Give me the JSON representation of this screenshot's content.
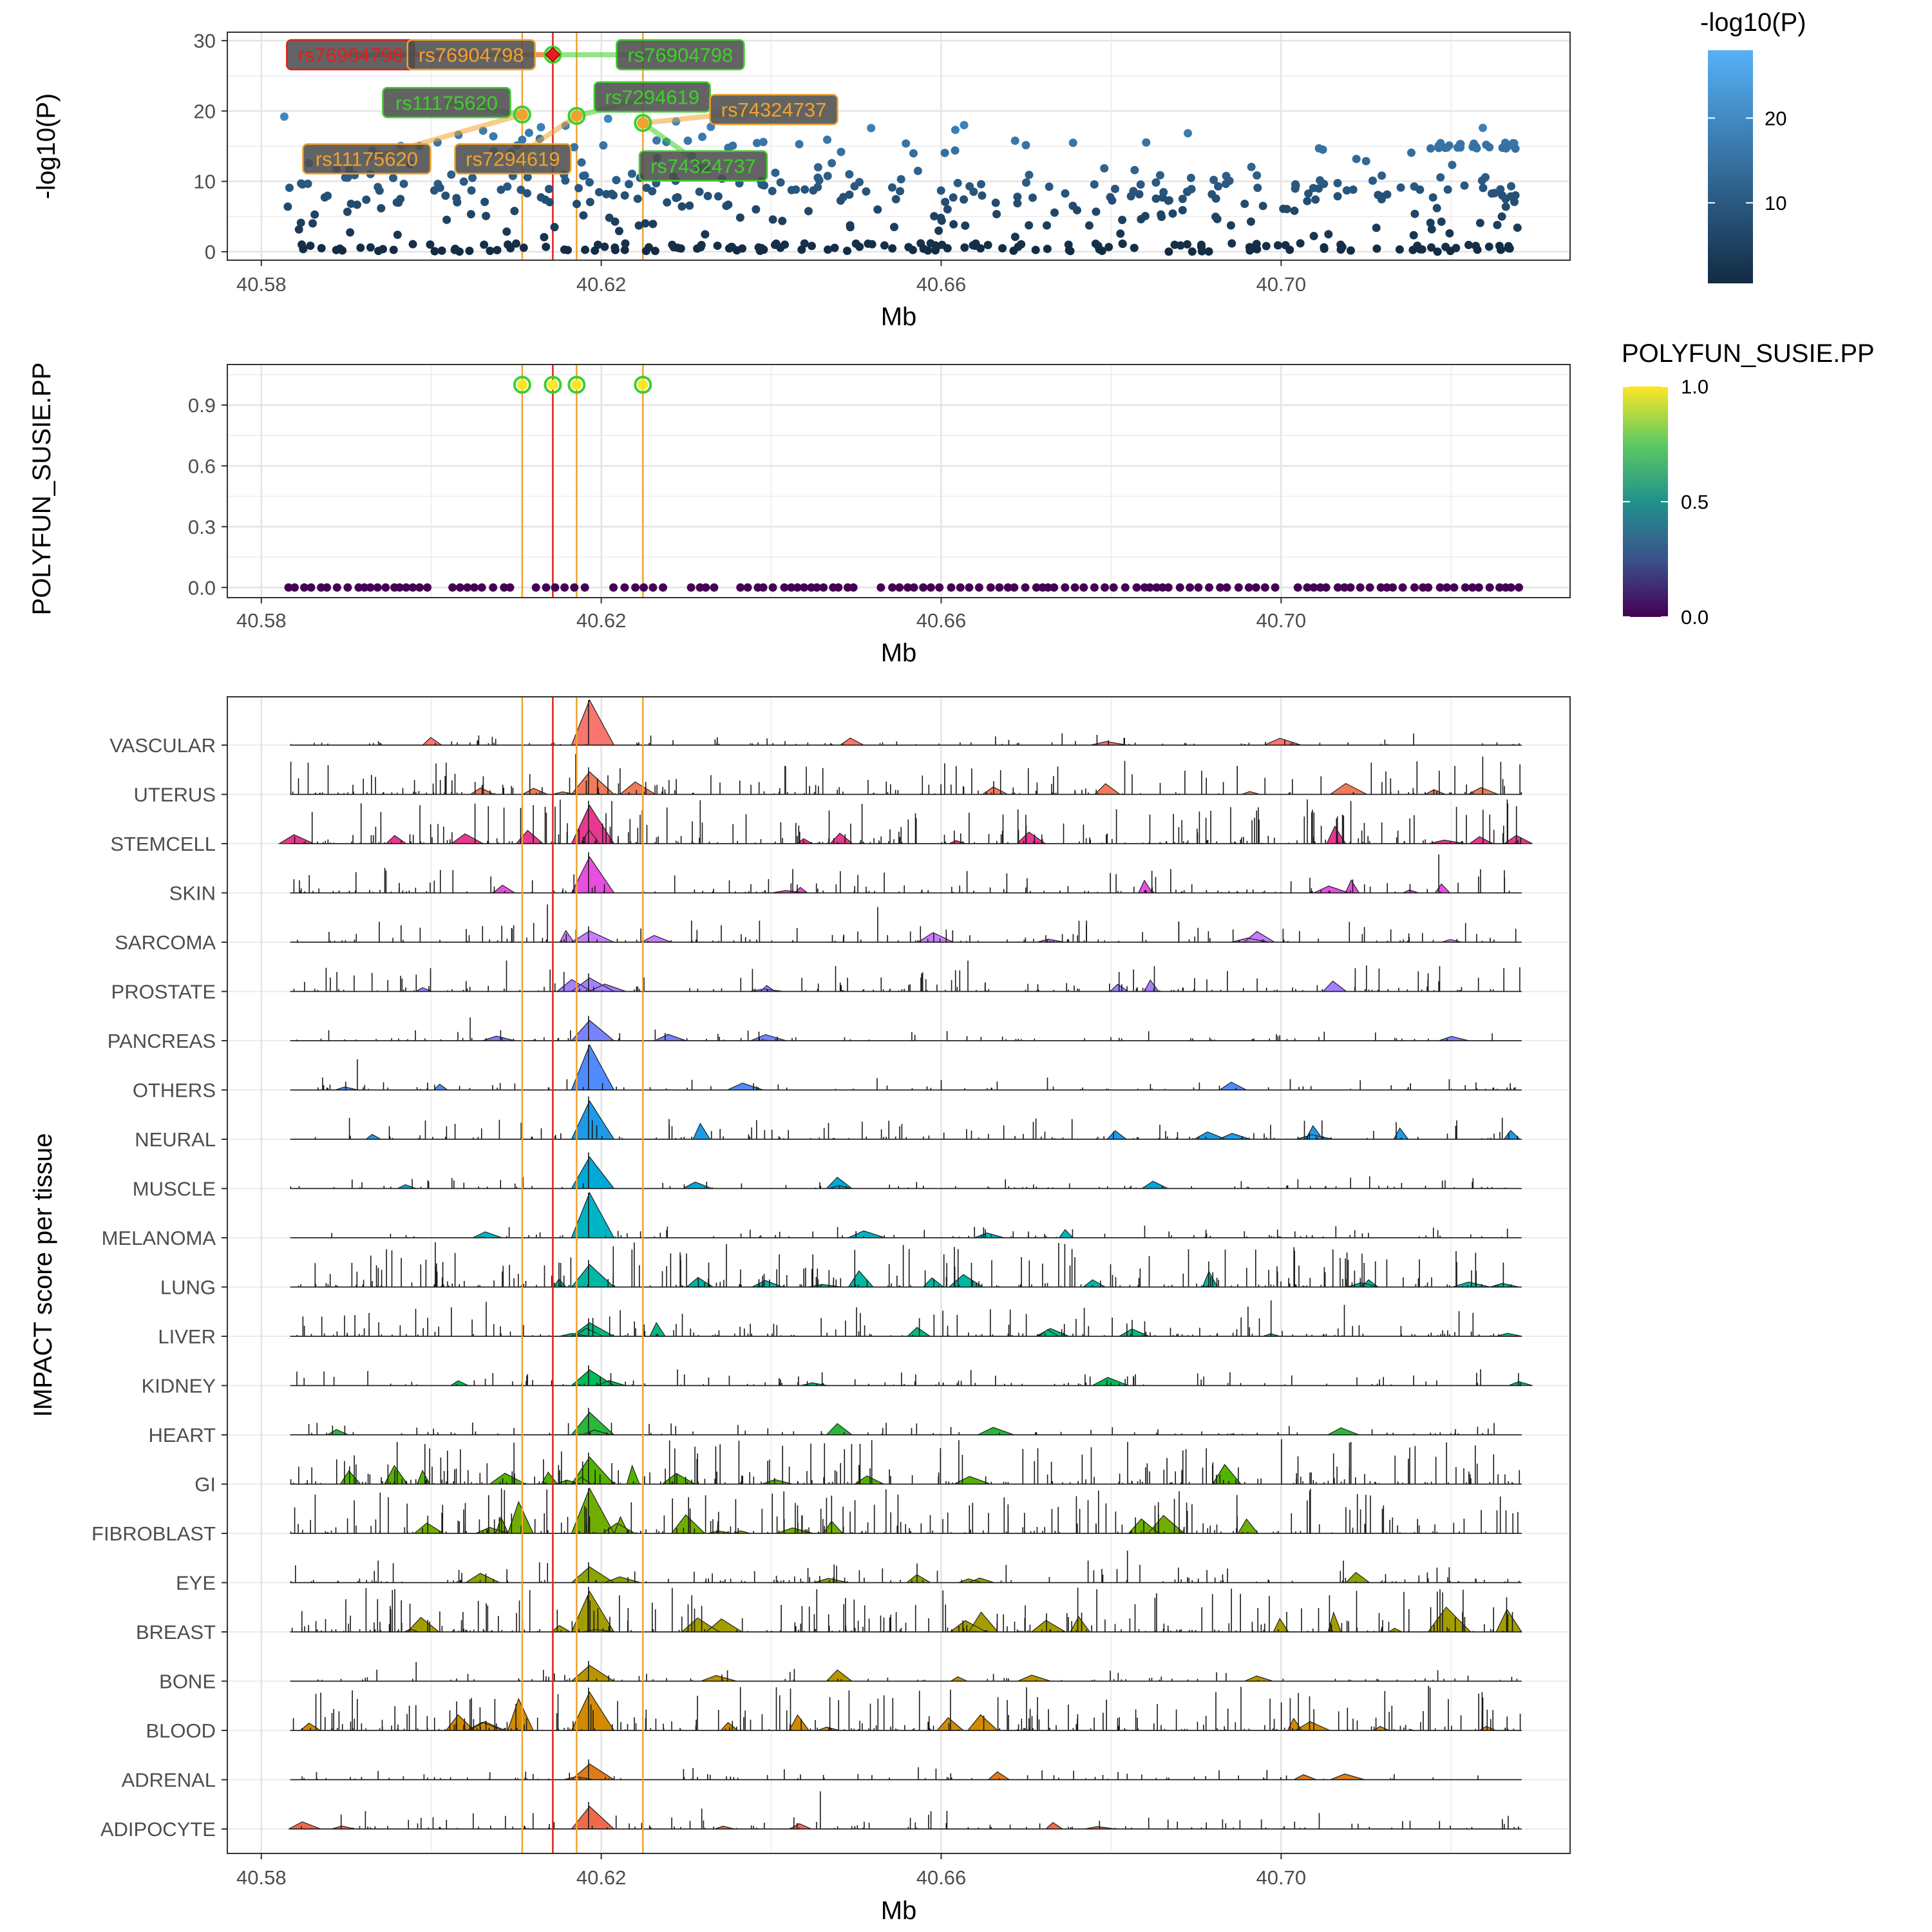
{
  "chart_data": [
    {
      "type": "scatter",
      "xlabel": "Mb",
      "ylabel": "-log10(P)",
      "xlim": [
        40.576,
        40.734
      ],
      "ylim": [
        -1.2,
        31.2
      ],
      "x_ticks": [
        "40.58",
        "40.62",
        "40.66",
        "40.70"
      ],
      "y_ticks": [
        "0",
        "10",
        "20",
        "30"
      ],
      "color_by": "-log10(P)",
      "legend": {
        "title": "-log10(P)",
        "ticks": [
          "10",
          "20"
        ],
        "low_color": "#132b43",
        "high_color": "#56b1f7",
        "position": "right"
      },
      "grid": true,
      "lead_snp_line": {
        "x": 40.6143,
        "color": "#e0201b"
      },
      "credible_set_lines": {
        "x": [
          40.6107,
          40.6171,
          40.6249
        ],
        "color": "#f0a22e"
      },
      "highlight_points": [
        {
          "snp": "rs76904798",
          "x": 40.6143,
          "y": 28.0
        },
        {
          "snp": "rs11175620",
          "x": 40.6107,
          "y": 19.5
        },
        {
          "snp": "rs7294619",
          "x": 40.6171,
          "y": 19.3
        },
        {
          "snp": "rs74324737",
          "x": 40.6249,
          "y": 18.3
        }
      ],
      "snp_labels": [
        {
          "text": "rs76904798",
          "x": 40.5905,
          "y": 28.0,
          "color": "#e0201b"
        },
        {
          "text": "rs76904798",
          "x": 40.6047,
          "y": 28.0,
          "color": "#f0a22e"
        },
        {
          "text": "rs76904798",
          "x": 40.6293,
          "y": 28.0,
          "color": "#3fcf2c"
        },
        {
          "text": "rs11175620",
          "x": 40.6018,
          "y": 21.2,
          "color": "#3fcf2c"
        },
        {
          "text": "rs7294619",
          "x": 40.626,
          "y": 22.0,
          "color": "#3fcf2c"
        },
        {
          "text": "rs74324737",
          "x": 40.6403,
          "y": 20.2,
          "color": "#f0a22e"
        },
        {
          "text": "rs11175620",
          "x": 40.5924,
          "y": 13.2,
          "color": "#f0a22e"
        },
        {
          "text": "rs7294619",
          "x": 40.6096,
          "y": 13.2,
          "color": "#f0a22e"
        },
        {
          "text": "rs74324737",
          "x": 40.632,
          "y": 12.2,
          "color": "#3fcf2c"
        }
      ],
      "points_summary": "approximately 500 SNPs between 40.583 and 40.728 Mb"
    },
    {
      "type": "scatter",
      "xlabel": "Mb",
      "ylabel": "POLYFUN_SUSIE.PP",
      "xlim": [
        40.576,
        40.734
      ],
      "ylim": [
        -0.05,
        1.1
      ],
      "x_ticks": [
        "40.58",
        "40.62",
        "40.66",
        "40.70"
      ],
      "y_ticks": [
        "0.0",
        "0.3",
        "0.6",
        "0.9"
      ],
      "color_by": "POLYFUN_SUSIE.PP",
      "legend": {
        "title": "POLYFUN_SUSIE.PP",
        "ticks": [
          "0.0",
          "0.5",
          "1.0"
        ],
        "colors": [
          "#440154",
          "#3b528b",
          "#21918c",
          "#5ec962",
          "#fde725"
        ],
        "position": "right"
      },
      "grid": true,
      "credible_set": [
        {
          "snp": "rs11175620",
          "x": 40.6107,
          "pp": 1.0
        },
        {
          "snp": "rs76904798",
          "x": 40.6143,
          "pp": 1.0
        },
        {
          "snp": "rs7294619",
          "x": 40.6171,
          "pp": 1.0
        },
        {
          "snp": "rs74324737",
          "x": 40.6249,
          "pp": 1.0
        }
      ],
      "other_points_pp": 0.0
    },
    {
      "type": "area",
      "xlabel": "Mb",
      "ylabel": "IMPACT score per tissue",
      "xlim": [
        40.576,
        40.734
      ],
      "x_ticks": [
        "40.58",
        "40.62",
        "40.66",
        "40.70"
      ],
      "grid": true,
      "tissues": [
        {
          "name": "VASCULAR",
          "color": "#f8766d"
        },
        {
          "name": "UTERUS",
          "color": "#f37b59"
        },
        {
          "name": "STEMCELL",
          "color": "#e6398f"
        },
        {
          "name": "SKIN",
          "color": "#e84fe0"
        },
        {
          "name": "SARCOMA",
          "color": "#c77cff"
        },
        {
          "name": "PROSTATE",
          "color": "#a580ff"
        },
        {
          "name": "PANCREAS",
          "color": "#7a82ff"
        },
        {
          "name": "OTHERS",
          "color": "#4f8bff"
        },
        {
          "name": "NEURAL",
          "color": "#1c9be8"
        },
        {
          "name": "MUSCLE",
          "color": "#00a9d8"
        },
        {
          "name": "MELANOMA",
          "color": "#00b4c4"
        },
        {
          "name": "LUNG",
          "color": "#00b8a3"
        },
        {
          "name": "LIVER",
          "color": "#00bb80"
        },
        {
          "name": "KIDNEY",
          "color": "#00bc5a"
        },
        {
          "name": "HEART",
          "color": "#28b93a"
        },
        {
          "name": "GI",
          "color": "#53b400"
        },
        {
          "name": "FIBROBLAST",
          "color": "#6fae00"
        },
        {
          "name": "EYE",
          "color": "#88a600"
        },
        {
          "name": "BREAST",
          "color": "#a39e00"
        },
        {
          "name": "BONE",
          "color": "#b99500"
        },
        {
          "name": "BLOOD",
          "color": "#d28a00"
        },
        {
          "name": "ADRENAL",
          "color": "#e07b1a"
        },
        {
          "name": "ADIPOCYTE",
          "color": "#ef6a4c"
        }
      ],
      "lead_snp_line": {
        "x": 40.6143,
        "color": "#e0201b"
      },
      "credible_set_lines": {
        "x": [
          40.6107,
          40.6171,
          40.6249
        ],
        "color": "#f0a22e"
      }
    }
  ]
}
